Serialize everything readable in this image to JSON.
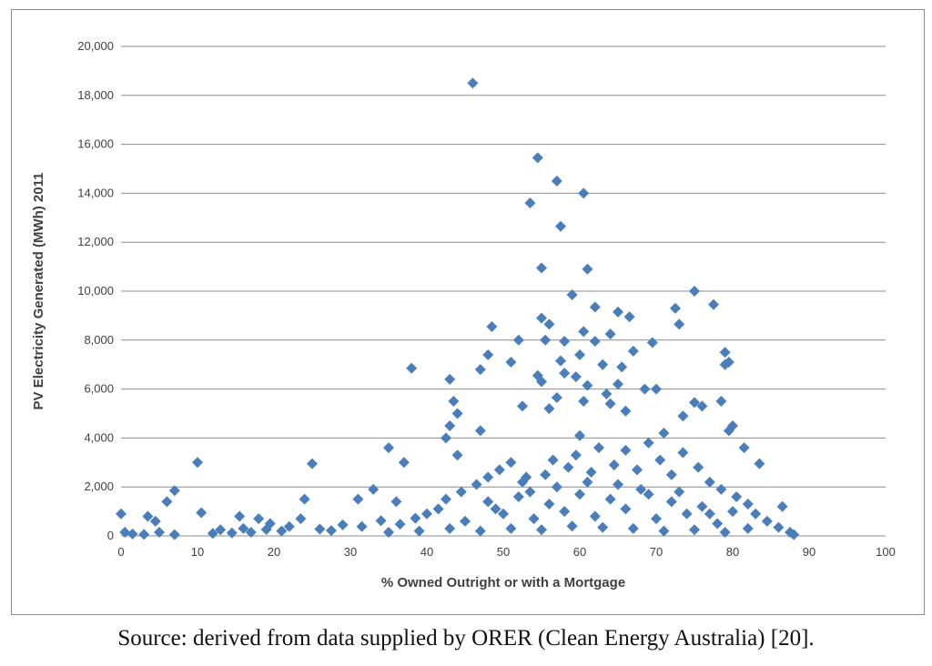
{
  "chart_data": {
    "type": "scatter",
    "title": "",
    "xlabel": "% Owned Outright or with a Mortgage",
    "ylabel": "PV Electricity Generated (MWh) 2011",
    "xlim": [
      0,
      100
    ],
    "ylim": [
      0,
      20000
    ],
    "x_ticks": [
      0,
      10,
      20,
      30,
      40,
      50,
      60,
      70,
      80,
      90,
      100
    ],
    "x_tick_labels": [
      "0",
      "10",
      "20",
      "30",
      "40",
      "50",
      "60",
      "70",
      "80",
      "90",
      "100"
    ],
    "y_ticks": [
      0,
      2000,
      4000,
      6000,
      8000,
      10000,
      12000,
      14000,
      16000,
      18000,
      20000
    ],
    "y_tick_labels": [
      "0",
      "2,000",
      "4,000",
      "6,000",
      "8,000",
      "10,000",
      "12,000",
      "14,000",
      "16,000",
      "18,000",
      "20,000"
    ],
    "grid": "horizontal",
    "marker": "diamond",
    "marker_color": "#4a7ebb",
    "gridline_color": "#8c8c8c",
    "series": [
      {
        "name": "PV Electricity Generated (MWh) 2011",
        "points": [
          [
            46,
            18500
          ],
          [
            54.5,
            15450
          ],
          [
            57,
            14500
          ],
          [
            60.5,
            14000
          ],
          [
            53.5,
            13600
          ],
          [
            57.5,
            12650
          ],
          [
            55,
            10950
          ],
          [
            61,
            10900
          ],
          [
            75,
            10000
          ],
          [
            59,
            9850
          ],
          [
            62,
            9350
          ],
          [
            72.5,
            9300
          ],
          [
            77.5,
            9450
          ],
          [
            65,
            9150
          ],
          [
            66.5,
            8950
          ],
          [
            55,
            8900
          ],
          [
            56,
            8650
          ],
          [
            73,
            8650
          ],
          [
            48.5,
            8550
          ],
          [
            60.5,
            8350
          ],
          [
            64,
            8250
          ],
          [
            52,
            8000
          ],
          [
            55.5,
            8000
          ],
          [
            58,
            7950
          ],
          [
            62,
            7950
          ],
          [
            69.5,
            7900
          ],
          [
            67,
            7550
          ],
          [
            79,
            7500
          ],
          [
            48,
            7400
          ],
          [
            60,
            7400
          ],
          [
            79,
            7000
          ],
          [
            79.5,
            7100
          ],
          [
            51,
            7100
          ],
          [
            57.5,
            7150
          ],
          [
            63,
            7000
          ],
          [
            65.5,
            6900
          ],
          [
            38,
            6850
          ],
          [
            47,
            6800
          ],
          [
            58,
            6650
          ],
          [
            54.5,
            6550
          ],
          [
            59.5,
            6500
          ],
          [
            43,
            6400
          ],
          [
            55,
            6300
          ],
          [
            65,
            6200
          ],
          [
            61,
            6150
          ],
          [
            68.5,
            6000
          ],
          [
            70,
            6000
          ],
          [
            63.5,
            5800
          ],
          [
            57,
            5650
          ],
          [
            60.5,
            5500
          ],
          [
            64,
            5400
          ],
          [
            75,
            5450
          ],
          [
            76,
            5300
          ],
          [
            78.5,
            5500
          ],
          [
            43.5,
            5500
          ],
          [
            52.5,
            5300
          ],
          [
            56,
            5200
          ],
          [
            66,
            5100
          ],
          [
            44,
            5000
          ],
          [
            73.5,
            4900
          ],
          [
            80,
            4500
          ],
          [
            79.5,
            4300
          ],
          [
            43,
            4500
          ],
          [
            47,
            4300
          ],
          [
            71,
            4200
          ],
          [
            60,
            4100
          ],
          [
            42.5,
            4000
          ],
          [
            35,
            3600
          ],
          [
            81.5,
            3600
          ],
          [
            44,
            3300
          ],
          [
            37,
            3000
          ],
          [
            10,
            3000
          ],
          [
            25,
            2950
          ],
          [
            83.5,
            2950
          ],
          [
            7,
            1850
          ],
          [
            24,
            1500
          ],
          [
            31,
            1500
          ],
          [
            33,
            1900
          ],
          [
            36,
            1400
          ],
          [
            86.5,
            1200
          ],
          [
            10.5,
            950
          ],
          [
            0,
            900
          ],
          [
            3.5,
            800
          ],
          [
            4.5,
            600
          ],
          [
            6,
            1400
          ],
          [
            15.5,
            800
          ],
          [
            18,
            700
          ],
          [
            19.5,
            500
          ],
          [
            23.5,
            700
          ],
          [
            0.5,
            150
          ],
          [
            1.5,
            80
          ],
          [
            3,
            60
          ],
          [
            5,
            150
          ],
          [
            7,
            50
          ],
          [
            12,
            100
          ],
          [
            13,
            250
          ],
          [
            14.5,
            120
          ],
          [
            16,
            300
          ],
          [
            17,
            150
          ],
          [
            19,
            260
          ],
          [
            21,
            200
          ],
          [
            22,
            380
          ],
          [
            26,
            280
          ],
          [
            27.5,
            220
          ],
          [
            29,
            450
          ],
          [
            31.5,
            380
          ],
          [
            34,
            620
          ],
          [
            36.5,
            480
          ],
          [
            38.5,
            720
          ],
          [
            40,
            900
          ],
          [
            41.5,
            1100
          ],
          [
            42.5,
            1500
          ],
          [
            44.5,
            1800
          ],
          [
            46.5,
            2100
          ],
          [
            48,
            2400
          ],
          [
            49.5,
            2700
          ],
          [
            51,
            3000
          ],
          [
            52.5,
            2200
          ],
          [
            53.5,
            1800
          ],
          [
            55.5,
            2500
          ],
          [
            56.5,
            3100
          ],
          [
            58.5,
            2800
          ],
          [
            59.5,
            3300
          ],
          [
            61.5,
            2600
          ],
          [
            62.5,
            3600
          ],
          [
            64.5,
            2900
          ],
          [
            66,
            3500
          ],
          [
            67.5,
            2700
          ],
          [
            69,
            3800
          ],
          [
            70.5,
            3100
          ],
          [
            72,
            2500
          ],
          [
            73.5,
            3400
          ],
          [
            75.5,
            2800
          ],
          [
            77,
            2200
          ],
          [
            78.5,
            1900
          ],
          [
            80.5,
            1600
          ],
          [
            82,
            1300
          ],
          [
            83,
            900
          ],
          [
            84.5,
            600
          ],
          [
            86,
            350
          ],
          [
            87.5,
            150
          ],
          [
            88,
            50
          ],
          [
            45,
            600
          ],
          [
            50,
            900
          ],
          [
            54,
            700
          ],
          [
            58,
            1000
          ],
          [
            62,
            800
          ],
          [
            66,
            1100
          ],
          [
            70,
            700
          ],
          [
            74,
            900
          ],
          [
            78,
            500
          ],
          [
            82,
            300
          ],
          [
            48,
            1400
          ],
          [
            52,
            1600
          ],
          [
            56,
            1300
          ],
          [
            60,
            1700
          ],
          [
            64,
            1500
          ],
          [
            68,
            1900
          ],
          [
            72,
            1400
          ],
          [
            76,
            1200
          ],
          [
            80,
            1000
          ],
          [
            47,
            200
          ],
          [
            51,
            300
          ],
          [
            55,
            250
          ],
          [
            59,
            400
          ],
          [
            63,
            350
          ],
          [
            67,
            300
          ],
          [
            71,
            200
          ],
          [
            75,
            250
          ],
          [
            79,
            150
          ],
          [
            43,
            300
          ],
          [
            39,
            200
          ],
          [
            35,
            150
          ],
          [
            57,
            2000
          ],
          [
            61,
            2200
          ],
          [
            65,
            2100
          ],
          [
            69,
            1700
          ],
          [
            53,
            2400
          ],
          [
            73,
            1800
          ],
          [
            49,
            1100
          ],
          [
            77,
            900
          ]
        ]
      }
    ]
  },
  "caption": "Source: derived from data supplied by ORER (Clean Energy Australia) [20]."
}
